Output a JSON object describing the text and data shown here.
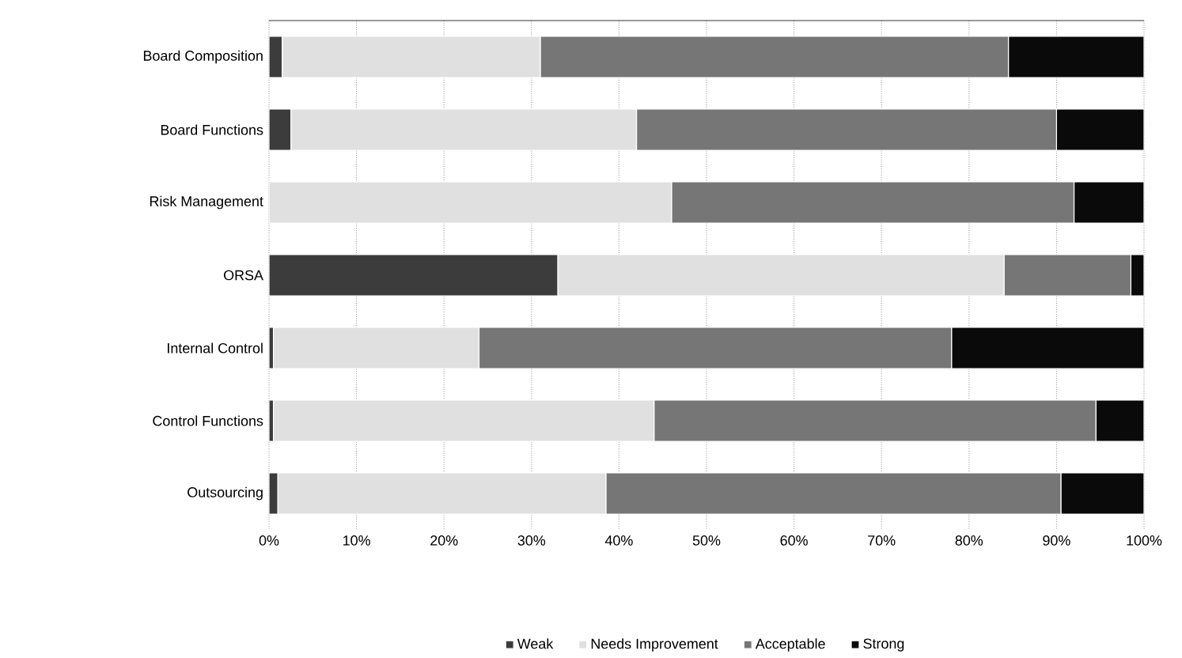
{
  "chart_data": {
    "type": "bar",
    "orientation": "horizontal",
    "stacked": true,
    "categories": [
      "Board Composition",
      "Board Functions",
      "Risk Management",
      "ORSA",
      "Internal Control",
      "Control Functions",
      "Outsourcing"
    ],
    "series": [
      {
        "name": "Weak",
        "color": "#3c3c3c",
        "values": [
          1.5,
          2.5,
          0,
          33,
          0.5,
          0.5,
          1
        ]
      },
      {
        "name": "Needs Improvement",
        "color": "#e0e0e0",
        "values": [
          29.5,
          39.5,
          46,
          51,
          23.5,
          43.5,
          37.5
        ]
      },
      {
        "name": "Acceptable",
        "color": "#767676",
        "values": [
          53.5,
          48,
          46,
          14.5,
          54,
          50.5,
          52
        ]
      },
      {
        "name": "Strong",
        "color": "#0a0a0a",
        "values": [
          15.5,
          10,
          8,
          1.5,
          22,
          5.5,
          9.5
        ]
      }
    ],
    "xlim": [
      0,
      100
    ],
    "xticks": [
      {
        "value": 0,
        "label": "0%"
      },
      {
        "value": 10,
        "label": "10%"
      },
      {
        "value": 20,
        "label": "20%"
      },
      {
        "value": 30,
        "label": "30%"
      },
      {
        "value": 40,
        "label": "40%"
      },
      {
        "value": 50,
        "label": "50%"
      },
      {
        "value": 60,
        "label": "60%"
      },
      {
        "value": 70,
        "label": "70%"
      },
      {
        "value": 80,
        "label": "80%"
      },
      {
        "value": 90,
        "label": "90%"
      },
      {
        "value": 100,
        "label": "100%"
      }
    ],
    "grid": "x",
    "legend": "bottom"
  }
}
